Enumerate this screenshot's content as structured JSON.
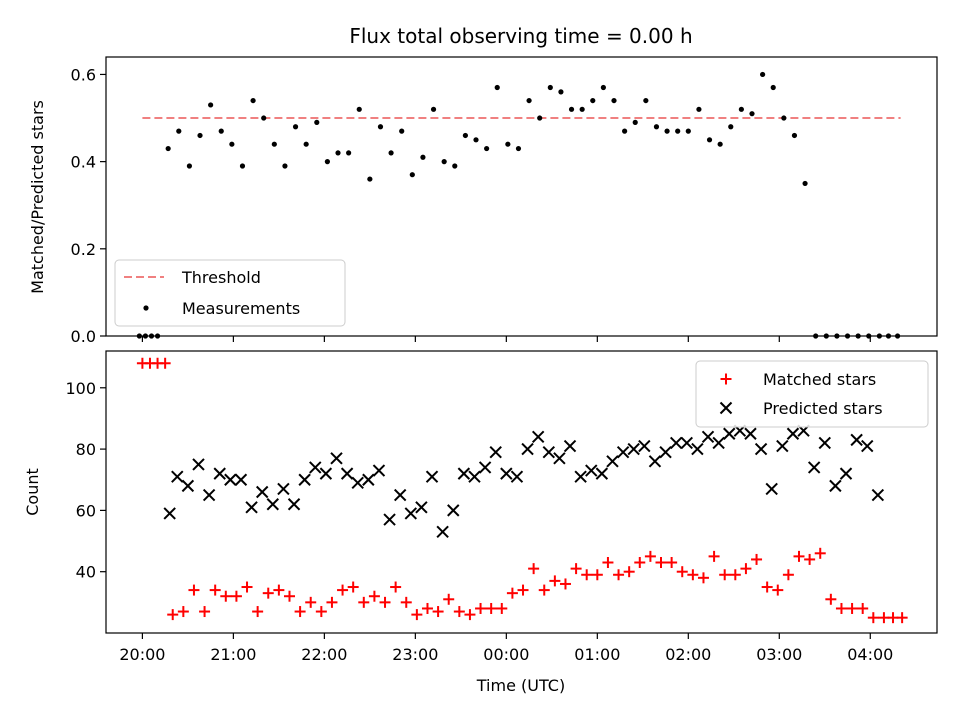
{
  "chart_data": [
    {
      "type": "scatter",
      "title": "Flux total observing time = 0.00 h",
      "xlabel": "",
      "ylabel": "Matched/Predicted stars",
      "xlim": [
        "19:36",
        "04:44"
      ],
      "ylim": [
        0,
        0.64
      ],
      "yticks": [
        "0.0",
        "0.2",
        "0.4",
        "0.6"
      ],
      "legend_position": "lower-left",
      "colors": {
        "threshold": "#f08080",
        "measurements": "#000000"
      },
      "threshold": {
        "name": "Threshold",
        "value": 0.5,
        "x_range": [
          "20:00",
          "04:20"
        ]
      },
      "series": [
        {
          "name": "Measurements",
          "x": [
            "19:58",
            "20:02",
            "20:06",
            "20:10",
            "20:17",
            "20:24",
            "20:31",
            "20:38",
            "20:45",
            "20:52",
            "20:59",
            "21:06",
            "21:13",
            "21:20",
            "21:27",
            "21:34",
            "21:41",
            "21:48",
            "21:55",
            "22:02",
            "22:09",
            "22:16",
            "22:23",
            "22:30",
            "22:37",
            "22:44",
            "22:51",
            "22:58",
            "23:05",
            "23:12",
            "23:19",
            "23:26",
            "23:33",
            "23:40",
            "23:47",
            "23:54",
            "00:01",
            "00:08",
            "00:15",
            "00:22",
            "00:29",
            "00:36",
            "00:43",
            "00:50",
            "00:57",
            "01:04",
            "01:11",
            "01:18",
            "01:25",
            "01:32",
            "01:39",
            "01:46",
            "01:53",
            "02:00",
            "02:07",
            "02:14",
            "02:21",
            "02:28",
            "02:35",
            "02:42",
            "02:49",
            "02:56",
            "03:03",
            "03:10",
            "03:17",
            "03:24",
            "03:31",
            "03:38",
            "03:45",
            "03:52",
            "03:59",
            "04:06",
            "04:12",
            "04:18"
          ],
          "y": [
            0.0,
            0.0,
            0.0,
            0.0,
            0.43,
            0.47,
            0.39,
            0.46,
            0.53,
            0.47,
            0.44,
            0.39,
            0.54,
            0.5,
            0.44,
            0.39,
            0.48,
            0.44,
            0.49,
            0.4,
            0.42,
            0.42,
            0.52,
            0.36,
            0.48,
            0.42,
            0.47,
            0.37,
            0.41,
            0.52,
            0.4,
            0.39,
            0.46,
            0.45,
            0.43,
            0.57,
            0.44,
            0.43,
            0.54,
            0.5,
            0.57,
            0.56,
            0.52,
            0.52,
            0.54,
            0.57,
            0.54,
            0.47,
            0.49,
            0.54,
            0.48,
            0.47,
            0.47,
            0.47,
            0.52,
            0.45,
            0.44,
            0.48,
            0.52,
            0.51,
            0.6,
            0.57,
            0.5,
            0.46,
            0.35,
            0.0,
            0.0,
            0.0,
            0.0,
            0.0,
            0.0,
            0.0,
            0.0,
            0.0
          ]
        }
      ]
    },
    {
      "type": "scatter",
      "title": "",
      "xlabel": "Time (UTC)",
      "ylabel": "Count",
      "xlim": [
        "19:36",
        "04:44"
      ],
      "ylim": [
        20,
        112
      ],
      "xticks": [
        "20:00",
        "21:00",
        "22:00",
        "23:00",
        "00:00",
        "01:00",
        "02:00",
        "03:00",
        "04:00"
      ],
      "yticks": [
        "40",
        "60",
        "80",
        "100"
      ],
      "legend_position": "upper-right",
      "colors": {
        "matched": "#ff0000",
        "predicted": "#000000"
      },
      "series": [
        {
          "name": "Matched stars",
          "marker": "plus",
          "x": [
            "20:00",
            "20:05",
            "20:10",
            "20:15",
            "20:20",
            "20:27",
            "20:34",
            "20:41",
            "20:48",
            "20:55",
            "21:02",
            "21:09",
            "21:16",
            "21:23",
            "21:30",
            "21:37",
            "21:44",
            "21:51",
            "21:58",
            "22:05",
            "22:12",
            "22:19",
            "22:26",
            "22:33",
            "22:40",
            "22:47",
            "22:54",
            "23:01",
            "23:08",
            "23:15",
            "23:22",
            "23:29",
            "23:36",
            "23:43",
            "23:50",
            "23:57",
            "00:04",
            "00:11",
            "00:18",
            "00:25",
            "00:32",
            "00:39",
            "00:46",
            "00:53",
            "01:00",
            "01:07",
            "01:14",
            "01:21",
            "01:28",
            "01:35",
            "01:42",
            "01:49",
            "01:56",
            "02:03",
            "02:10",
            "02:17",
            "02:24",
            "02:31",
            "02:38",
            "02:45",
            "02:52",
            "02:59",
            "03:06",
            "03:13",
            "03:20",
            "03:27",
            "03:34",
            "03:41",
            "03:48",
            "03:55",
            "04:02",
            "04:09",
            "04:15",
            "04:21"
          ],
          "y": [
            108,
            108,
            108,
            108,
            26,
            27,
            34,
            27,
            34,
            32,
            32,
            35,
            27,
            33,
            34,
            32,
            27,
            30,
            27,
            30,
            34,
            35,
            30,
            32,
            30,
            35,
            30,
            26,
            28,
            27,
            31,
            27,
            26,
            28,
            28,
            28,
            33,
            34,
            41,
            34,
            37,
            36,
            41,
            39,
            39,
            43,
            39,
            40,
            43,
            45,
            43,
            43,
            40,
            39,
            38,
            45,
            39,
            39,
            41,
            44,
            35,
            34,
            39,
            45,
            44,
            46,
            31,
            28,
            28,
            28,
            25,
            25,
            25,
            25
          ]
        },
        {
          "name": "Predicted stars",
          "marker": "cross",
          "x": [
            "20:18",
            "20:23",
            "20:30",
            "20:37",
            "20:44",
            "20:51",
            "20:58",
            "21:05",
            "21:12",
            "21:19",
            "21:26",
            "21:33",
            "21:40",
            "21:47",
            "21:54",
            "22:01",
            "22:08",
            "22:15",
            "22:22",
            "22:29",
            "22:36",
            "22:43",
            "22:50",
            "22:57",
            "23:04",
            "23:11",
            "23:18",
            "23:25",
            "23:32",
            "23:39",
            "23:46",
            "23:53",
            "00:00",
            "00:07",
            "00:14",
            "00:21",
            "00:28",
            "00:35",
            "00:42",
            "00:49",
            "00:56",
            "01:03",
            "01:10",
            "01:17",
            "01:24",
            "01:31",
            "01:38",
            "01:45",
            "01:52",
            "01:59",
            "02:06",
            "02:13",
            "02:20",
            "02:27",
            "02:34",
            "02:41",
            "02:48",
            "02:55",
            "03:02",
            "03:09",
            "03:16",
            "03:23",
            "03:30",
            "03:37",
            "03:44",
            "03:51",
            "03:58",
            "04:05"
          ],
          "y": [
            59,
            71,
            68,
            75,
            65,
            72,
            70,
            70,
            61,
            66,
            62,
            67,
            62,
            70,
            74,
            72,
            77,
            72,
            69,
            70,
            73,
            57,
            65,
            59,
            61,
            71,
            53,
            60,
            72,
            71,
            74,
            79,
            72,
            71,
            80,
            84,
            79,
            77,
            81,
            71,
            73,
            72,
            76,
            79,
            80,
            81,
            76,
            79,
            82,
            82,
            80,
            84,
            82,
            85,
            86,
            85,
            80,
            67,
            81,
            85,
            86,
            74,
            82,
            68,
            72,
            83,
            81,
            65
          ]
        }
      ]
    }
  ]
}
